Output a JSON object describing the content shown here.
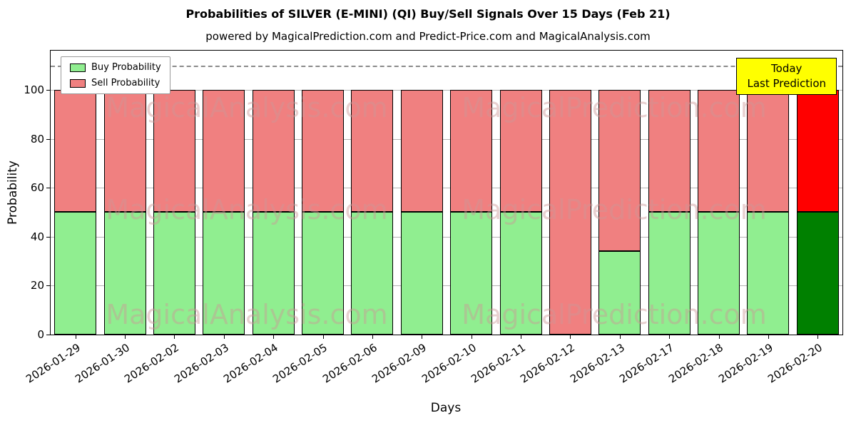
{
  "title": "Probabilities of SILVER (E-MINI) (QI) Buy/Sell Signals Over 15 Days (Feb 21)",
  "subtitle": "powered by MagicalPrediction.com and Predict-Price.com and MagicalAnalysis.com",
  "legend": {
    "buy": "Buy Probability",
    "sell": "Sell Probability"
  },
  "annotation": {
    "line1": "Today",
    "line2": "Last Prediction",
    "bg_color": "#ffff00"
  },
  "watermarks": {
    "left": "MagicalAnalysis.com",
    "right": "MagicalPrediction.com"
  },
  "colors": {
    "buy": "#90ee90",
    "sell": "#f08080",
    "today_buy": "#008000",
    "today_sell": "#ff0000",
    "grid": "#b4b4b4",
    "annotation_bg": "#ffff00"
  },
  "chart_data": {
    "type": "bar",
    "stacked": true,
    "title": "Probabilities of SILVER (E-MINI) (QI) Buy/Sell Signals Over 15 Days (Feb 21)",
    "subtitle": "powered by MagicalPrediction.com and Predict-Price.com and MagicalAnalysis.com",
    "xlabel": "Days",
    "ylabel": "Probability",
    "ylim": [
      0,
      116
    ],
    "yticks": [
      0,
      20,
      40,
      60,
      80,
      100
    ],
    "dashed_line_y": 110,
    "grid": true,
    "legend_position": "upper left",
    "categories": [
      "2026-01-29",
      "2026-01-30",
      "2026-02-02",
      "2026-02-03",
      "2026-02-04",
      "2026-02-05",
      "2026-02-06",
      "2026-02-09",
      "2026-02-10",
      "2026-02-11",
      "2026-02-12",
      "2026-02-13",
      "2026-02-17",
      "2026-02-18",
      "2026-02-19",
      "2026-02-20"
    ],
    "series": [
      {
        "name": "Buy Probability",
        "values": [
          50,
          50,
          50,
          50,
          50,
          50,
          50,
          50,
          50,
          50,
          0,
          34,
          50,
          50,
          50,
          50
        ]
      },
      {
        "name": "Sell Probability",
        "values": [
          50,
          50,
          50,
          50,
          50,
          50,
          50,
          50,
          50,
          50,
          100,
          66,
          50,
          50,
          50,
          50
        ]
      }
    ],
    "today_index": 15
  }
}
